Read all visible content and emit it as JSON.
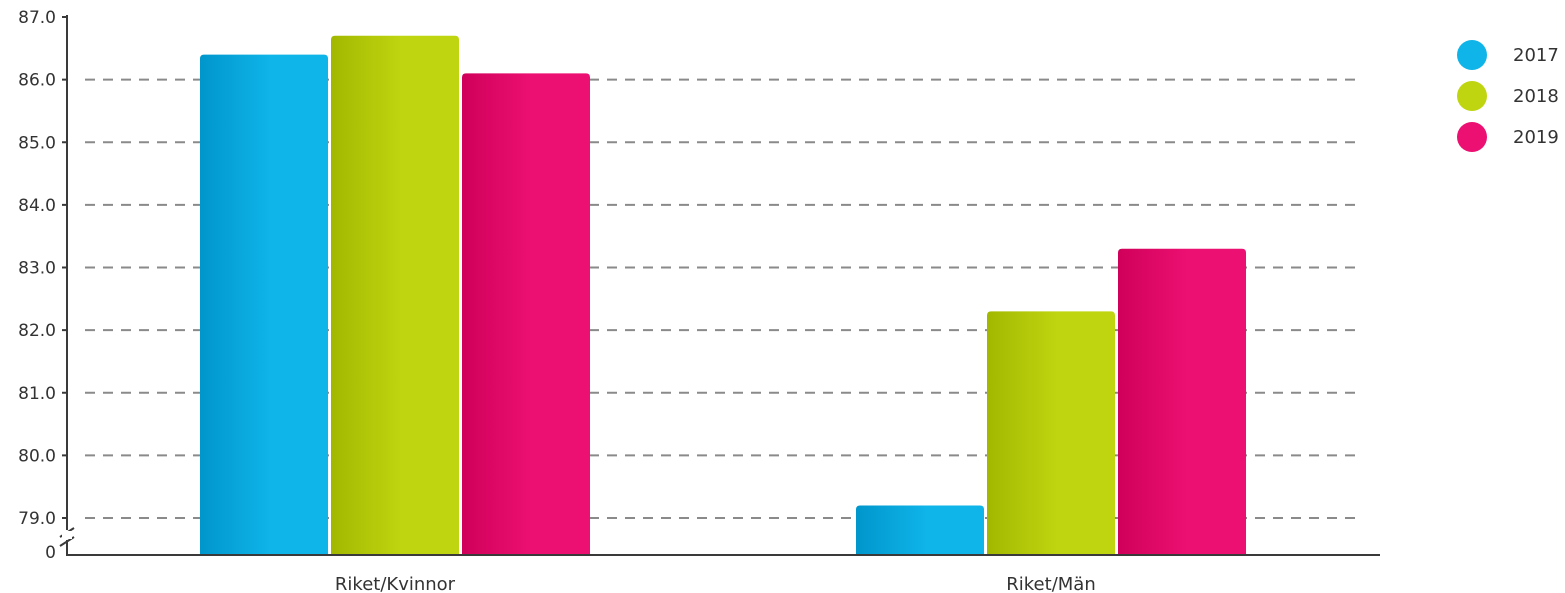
{
  "chart_data": {
    "type": "bar",
    "categories": [
      "Riket/Kvinnor",
      "Riket/Män"
    ],
    "series": [
      {
        "name": "2017",
        "values": [
          86.4,
          79.2
        ],
        "color": "#0fb4e8",
        "color_dark": "#0096cc"
      },
      {
        "name": "2018",
        "values": [
          86.7,
          82.3
        ],
        "color": "#bfd510",
        "color_dark": "#a2b800"
      },
      {
        "name": "2019",
        "values": [
          86.1,
          83.3
        ],
        "color": "#ec1072",
        "color_dark": "#d0005a"
      }
    ],
    "yticks": [
      "0",
      "79.0",
      "80.0",
      "81.0",
      "82.0",
      "83.0",
      "84.0",
      "85.0",
      "86.0",
      "87.0"
    ],
    "ylim": [
      79.0,
      87.0
    ],
    "axis_break": true,
    "grid": "dashed-horizontal",
    "legend_position": "top-right",
    "title": "",
    "xlabel": "",
    "ylabel": ""
  }
}
